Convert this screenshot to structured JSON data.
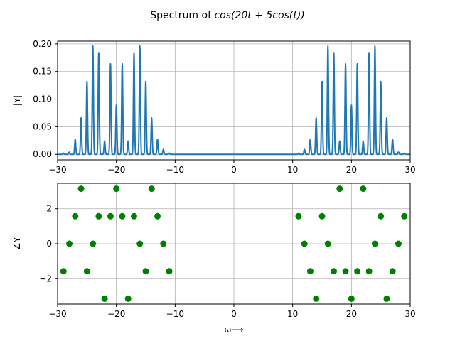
{
  "figure": {
    "title_prefix": "Spectrum of ",
    "title_expr": "cos(20t + 5cos(t))"
  },
  "chart_data": [
    {
      "type": "line",
      "ylabel": "|Y|",
      "xlim": [
        -30,
        30
      ],
      "ylim": [
        -0.01,
        0.205
      ],
      "xticks": [
        -30,
        -20,
        -10,
        0,
        10,
        20,
        30
      ],
      "yticks": [
        0.0,
        0.05,
        0.1,
        0.15,
        0.2
      ],
      "ytick_labels": [
        "0.00",
        "0.05",
        "0.10",
        "0.15",
        "0.20"
      ],
      "grid": true,
      "color": "#1f77b4",
      "series": [
        {
          "peaks_x": [
            -29,
            -28,
            -27,
            -26,
            -25,
            -24,
            -23,
            -22,
            -21,
            -20,
            -19,
            -18,
            -17,
            -16,
            -15,
            -14,
            -13,
            -12,
            -11,
            11,
            12,
            13,
            14,
            15,
            16,
            17,
            18,
            19,
            20,
            21,
            22,
            23,
            24,
            25,
            26,
            27,
            28,
            29
          ],
          "peaks_y": [
            0.002,
            0.004,
            0.027,
            0.066,
            0.132,
            0.196,
            0.184,
            0.024,
            0.164,
            0.089,
            0.164,
            0.024,
            0.184,
            0.196,
            0.132,
            0.066,
            0.027,
            0.009,
            0.002,
            0.002,
            0.009,
            0.027,
            0.066,
            0.132,
            0.196,
            0.184,
            0.024,
            0.164,
            0.089,
            0.164,
            0.024,
            0.184,
            0.196,
            0.132,
            0.066,
            0.027,
            0.004,
            0.002
          ]
        }
      ]
    },
    {
      "type": "scatter",
      "ylabel": "∠Y",
      "xlabel": "ω⟶",
      "xlim": [
        -30,
        30
      ],
      "ylim": [
        -3.45,
        3.45
      ],
      "xticks": [
        -30,
        -20,
        -10,
        0,
        10,
        20,
        30
      ],
      "yticks": [
        -2,
        0,
        2
      ],
      "grid": true,
      "color": "#008000",
      "series": [
        {
          "x": [
            -29,
            -28,
            -27,
            -26,
            -25,
            -24,
            -23,
            -22,
            -21,
            -20,
            -19,
            -18,
            -17,
            -16,
            -15,
            -14,
            -13,
            -12,
            -11,
            11,
            12,
            13,
            14,
            15,
            16,
            17,
            18,
            19,
            20,
            21,
            22,
            23,
            24,
            25,
            26,
            27,
            28,
            29
          ],
          "y": [
            -1.571,
            0,
            1.571,
            3.142,
            -1.571,
            0,
            1.571,
            -3.142,
            1.571,
            3.142,
            1.571,
            -3.142,
            1.571,
            0,
            -1.571,
            3.142,
            1.571,
            0,
            -1.571,
            1.571,
            0,
            -1.571,
            -3.142,
            1.571,
            0,
            -1.571,
            3.142,
            -1.571,
            -3.142,
            -1.571,
            3.142,
            -1.571,
            0,
            1.571,
            -3.142,
            -1.571,
            0,
            1.571
          ]
        }
      ]
    }
  ]
}
